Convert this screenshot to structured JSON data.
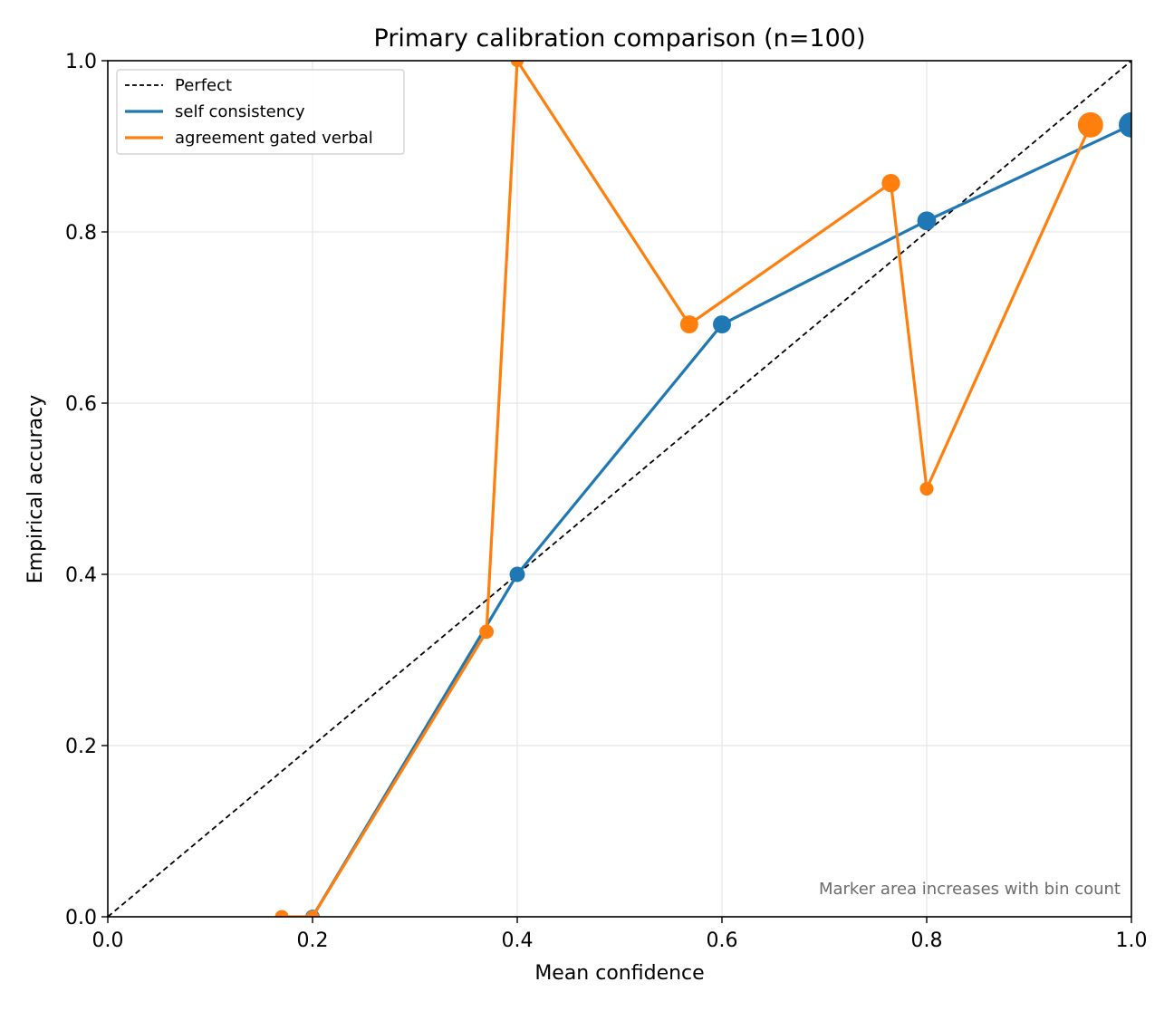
{
  "chart_data": {
    "type": "line",
    "title": "Primary calibration comparison (n=100)",
    "xlabel": "Mean confidence",
    "ylabel": "Empirical accuracy",
    "xlim": [
      0.0,
      1.0
    ],
    "ylim": [
      0.0,
      1.0
    ],
    "xticks": [
      "0.0",
      "0.2",
      "0.4",
      "0.6",
      "0.8",
      "1.0"
    ],
    "yticks": [
      "0.0",
      "0.2",
      "0.4",
      "0.6",
      "0.8",
      "1.0"
    ],
    "grid": true,
    "legend_position": "top-left",
    "reference_line": {
      "name": "Perfect",
      "x": [
        0.0,
        1.0
      ],
      "y": [
        0.0,
        1.0
      ],
      "color": "#000000",
      "style": "dashed"
    },
    "series": [
      {
        "name": "self consistency",
        "color": "#1f77b4",
        "x": [
          0.2,
          0.4,
          0.6,
          0.8,
          1.0
        ],
        "y": [
          0.0,
          0.4,
          0.692,
          0.813,
          0.925
        ],
        "bin_count": [
          3,
          5,
          13,
          16,
          63
        ]
      },
      {
        "name": "agreement gated verbal",
        "color": "#ff7f0e",
        "x": [
          0.17,
          0.2,
          0.37,
          0.4,
          0.568,
          0.765,
          0.8,
          0.96
        ],
        "y": [
          0.0,
          0.0,
          0.333,
          1.0,
          0.692,
          0.857,
          0.5,
          0.925
        ],
        "bin_count": [
          2,
          1,
          3,
          1,
          13,
          14,
          2,
          53
        ]
      }
    ],
    "annotation": "Marker area increases with bin count"
  }
}
